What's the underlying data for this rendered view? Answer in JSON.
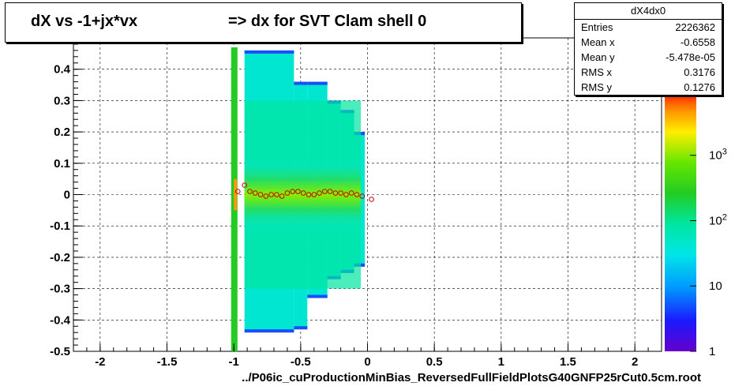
{
  "title_left": "dX vs -1+jx*vx",
  "title_right": "=> dx for SVT Clam shell 0",
  "stats": {
    "name": "dX4dx0",
    "rows": [
      {
        "label": "Entries",
        "value": "2226362"
      },
      {
        "label": "Mean x",
        "value": "-0.6558"
      },
      {
        "label": "Mean y",
        "value": "-5.478e-05"
      },
      {
        "label": "RMS x",
        "value": "0.3176"
      },
      {
        "label": "RMS y",
        "value": "0.1276"
      }
    ]
  },
  "chart_data": {
    "type": "heatmap",
    "title": "dX vs -1+jx*vx          => dx for SVT Clam shell 0",
    "xlabel": "../P06ic_cuProductionMinBias_ReversedFullFieldPlotsG40GNFP25rCut0.5cm.root",
    "ylabel": "",
    "xlim": [
      -2.2,
      2.2
    ],
    "ylim": [
      -0.5,
      0.5
    ],
    "xticks": [
      -2,
      -1.5,
      -1,
      -0.5,
      0,
      0.5,
      1,
      1.5,
      2
    ],
    "xtick_labels": [
      "-2",
      "-1.5",
      "-1",
      "-0.5",
      "0",
      "0.5",
      "1",
      "1.5",
      "2"
    ],
    "yticks": [
      -0.5,
      -0.4,
      -0.3,
      -0.2,
      -0.1,
      0,
      0.1,
      0.2,
      0.3,
      0.4
    ],
    "ytick_labels": [
      "-0.5",
      "-0.4",
      "-0.3",
      "-0.2",
      "-0.1",
      "0",
      "0.1",
      "0.2",
      "0.3",
      "0.4"
    ],
    "grid": true,
    "color_scale": "log",
    "zlim": [
      1,
      8000
    ],
    "colorbar_labels": [
      "1",
      "10",
      "10^2",
      "10^3"
    ],
    "colorbar_values": [
      1,
      10,
      100,
      1000
    ],
    "envelope_columns": [
      {
        "x0": -0.92,
        "x1": -0.55,
        "ylo": -0.44,
        "yhi": 0.46
      },
      {
        "x0": -0.55,
        "x1": -0.45,
        "ylo": -0.43,
        "yhi": 0.36
      },
      {
        "x0": -0.45,
        "x1": -0.3,
        "ylo": -0.33,
        "yhi": 0.36
      },
      {
        "x0": -0.3,
        "x1": -0.2,
        "ylo": -0.27,
        "yhi": 0.3
      },
      {
        "x0": -0.2,
        "x1": -0.1,
        "ylo": -0.25,
        "yhi": 0.27
      },
      {
        "x0": -0.1,
        "x1": -0.02,
        "ylo": -0.23,
        "yhi": 0.2
      }
    ],
    "profile": {
      "x": [
        -0.97,
        -0.92,
        -0.88,
        -0.84,
        -0.8,
        -0.76,
        -0.72,
        -0.68,
        -0.64,
        -0.6,
        -0.56,
        -0.52,
        -0.48,
        -0.44,
        -0.4,
        -0.36,
        -0.32,
        -0.28,
        -0.24,
        -0.2,
        -0.16,
        -0.12,
        -0.08,
        -0.04,
        0.03
      ],
      "y": [
        0.01,
        0.03,
        0.01,
        0.005,
        0.0,
        -0.005,
        0.0,
        0.0,
        -0.005,
        0.005,
        0.01,
        0.01,
        0.005,
        0.0,
        0.0,
        0.005,
        0.01,
        0.01,
        0.005,
        0.005,
        0.0,
        0.005,
        0.0,
        -0.005,
        -0.015
      ]
    }
  }
}
